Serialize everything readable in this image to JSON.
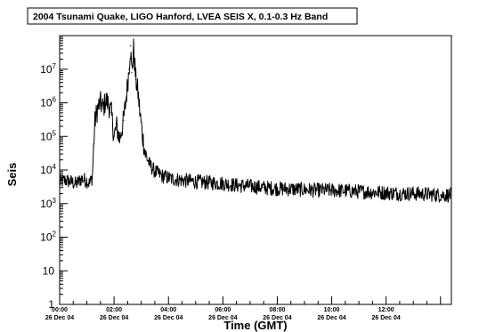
{
  "chart_data": {
    "type": "line",
    "title": "2004 Tsunami Quake, LIGO Hanford, LVEA SEIS X, 0.1-0.3 Hz Band",
    "xlabel": "Time (GMT)",
    "ylabel": "Seis",
    "yscale": "log",
    "ylim": [
      1,
      100000000
    ],
    "xlim_hours": [
      0,
      14.4
    ],
    "y_ticks": [
      {
        "value": 1,
        "base": "1",
        "exp": ""
      },
      {
        "value": 10,
        "base": "10",
        "exp": ""
      },
      {
        "value": 100,
        "base": "10",
        "exp": "2"
      },
      {
        "value": 1000,
        "base": "10",
        "exp": "3"
      },
      {
        "value": 10000,
        "base": "10",
        "exp": "4"
      },
      {
        "value": 100000,
        "base": "10",
        "exp": "5"
      },
      {
        "value": 1000000,
        "base": "10",
        "exp": "6"
      },
      {
        "value": 10000000,
        "base": "10",
        "exp": "7"
      }
    ],
    "x_ticks": [
      {
        "hour": 0,
        "time": "00:00",
        "date": "26 Dec 04"
      },
      {
        "hour": 2,
        "time": "02:00",
        "date": "26 Dec 04"
      },
      {
        "hour": 4,
        "time": "04:00",
        "date": "26 Dec 04"
      },
      {
        "hour": 6,
        "time": "06:00",
        "date": "26 Dec 04"
      },
      {
        "hour": 8,
        "time": "08:00",
        "date": "26 Dec 04"
      },
      {
        "hour": 10,
        "time": "10:00",
        "date": "26 Dec 04"
      },
      {
        "hour": 12,
        "time": "12:00",
        "date": "26 Dec 04"
      }
    ],
    "grid": false,
    "legend": "none",
    "series": [
      {
        "color": "#000000",
        "points": [
          [
            0.0,
            4200
          ],
          [
            0.2,
            5000
          ],
          [
            0.4,
            4500
          ],
          [
            0.6,
            3800
          ],
          [
            0.8,
            5500
          ],
          [
            1.0,
            4800
          ],
          [
            1.1,
            4000
          ],
          [
            1.2,
            6000
          ],
          [
            1.25,
            50000
          ],
          [
            1.3,
            300000
          ],
          [
            1.4,
            700000
          ],
          [
            1.5,
            1000000
          ],
          [
            1.6,
            700000
          ],
          [
            1.7,
            1200000
          ],
          [
            1.8,
            900000
          ],
          [
            1.9,
            500000
          ],
          [
            2.0,
            100000
          ],
          [
            2.1,
            200000
          ],
          [
            2.2,
            80000
          ],
          [
            2.35,
            300000
          ],
          [
            2.45,
            1500000
          ],
          [
            2.55,
            10000000
          ],
          [
            2.6,
            50000000
          ],
          [
            2.65,
            8000000
          ],
          [
            2.72,
            40000000
          ],
          [
            2.8,
            5000000
          ],
          [
            2.88,
            2000000
          ],
          [
            2.95,
            500000
          ],
          [
            3.05,
            100000
          ],
          [
            3.15,
            30000
          ],
          [
            3.3,
            15000
          ],
          [
            3.5,
            9000
          ],
          [
            3.8,
            6500
          ],
          [
            4.1,
            5500
          ],
          [
            4.5,
            5000
          ],
          [
            5.0,
            4500
          ],
          [
            5.5,
            4200
          ],
          [
            6.0,
            4000
          ],
          [
            6.5,
            3500
          ],
          [
            7.0,
            3300
          ],
          [
            7.5,
            3000
          ],
          [
            8.0,
            2800
          ],
          [
            8.5,
            2700
          ],
          [
            9.0,
            2600
          ],
          [
            9.5,
            2500
          ],
          [
            10.0,
            2500
          ],
          [
            10.5,
            2400
          ],
          [
            11.0,
            2300
          ],
          [
            11.5,
            2200
          ],
          [
            12.0,
            2100
          ],
          [
            12.5,
            2000
          ],
          [
            13.0,
            2000
          ],
          [
            13.5,
            1900
          ],
          [
            14.0,
            1800
          ],
          [
            14.4,
            1800
          ]
        ]
      }
    ]
  }
}
